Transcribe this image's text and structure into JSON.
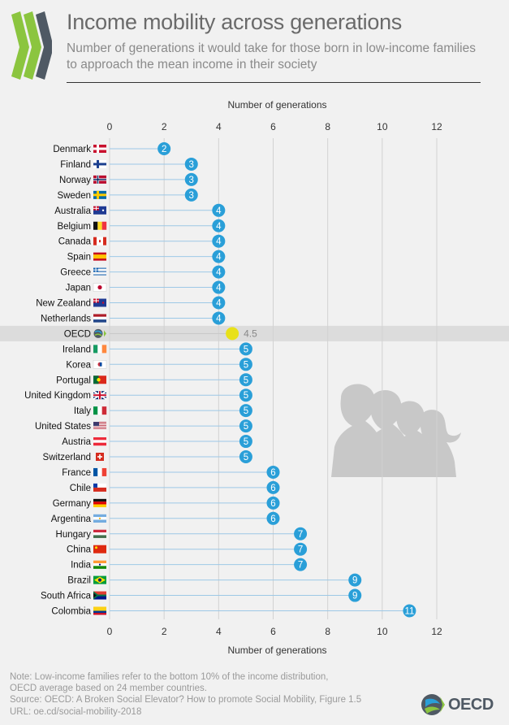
{
  "header": {
    "title": "Income mobility across generations",
    "subtitle": "Number of generations it would take for those born in low-income families to approach the mean income in their society"
  },
  "colors": {
    "accent": "#2a9fd8",
    "oecd_marker": "#e8e11a",
    "oecd_band": "#dcdcdc",
    "logo_green": "#8bc53f",
    "logo_dark": "#4f5964"
  },
  "chart_data": {
    "type": "lollipop",
    "xlabel": "Number of generations",
    "xlim": [
      0,
      12
    ],
    "xticks": [
      0,
      2,
      4,
      6,
      8,
      10,
      12
    ],
    "categories": [
      "Denmark",
      "Finland",
      "Norway",
      "Sweden",
      "Australia",
      "Belgium",
      "Canada",
      "Spain",
      "Greece",
      "Japan",
      "New Zealand",
      "Netherlands",
      "OECD",
      "Ireland",
      "Korea",
      "Portugal",
      "United Kingdom",
      "Italy",
      "United States",
      "Austria",
      "Switzerland",
      "France",
      "Chile",
      "Germany",
      "Argentina",
      "Hungary",
      "China",
      "India",
      "Brazil",
      "South Africa",
      "Colombia"
    ],
    "values": [
      2,
      3,
      3,
      3,
      4,
      4,
      4,
      4,
      4,
      4,
      4,
      4,
      4.5,
      5,
      5,
      5,
      5,
      5,
      5,
      5,
      5,
      6,
      6,
      6,
      6,
      7,
      7,
      7,
      9,
      9,
      11
    ],
    "value_labels": [
      "2",
      "3",
      "3",
      "3",
      "4",
      "4",
      "4",
      "4",
      "4",
      "4",
      "4",
      "4",
      "4.5",
      "5",
      "5",
      "5",
      "5",
      "5",
      "5",
      "5",
      "5",
      "6",
      "6",
      "6",
      "6",
      "7",
      "7",
      "7",
      "9",
      "9",
      "11"
    ],
    "highlight": "OECD",
    "grid": true
  },
  "footer": {
    "note_1": "Note: Low-income families refer to the bottom 10% of the income distribution,",
    "note_2": "OECD average based on 24 member countries.",
    "source": "Source: OECD: A Broken Social Elevator? How to promote Social Mobility, Figure 1.5",
    "url": "URL: oe.cd/social-mobility-2018",
    "brand": "OECD"
  },
  "icons": [
    "oecd-chevron-logo-icon",
    "country-flag-icon",
    "oecd-globe-icon",
    "family-silhouettes-icon"
  ]
}
